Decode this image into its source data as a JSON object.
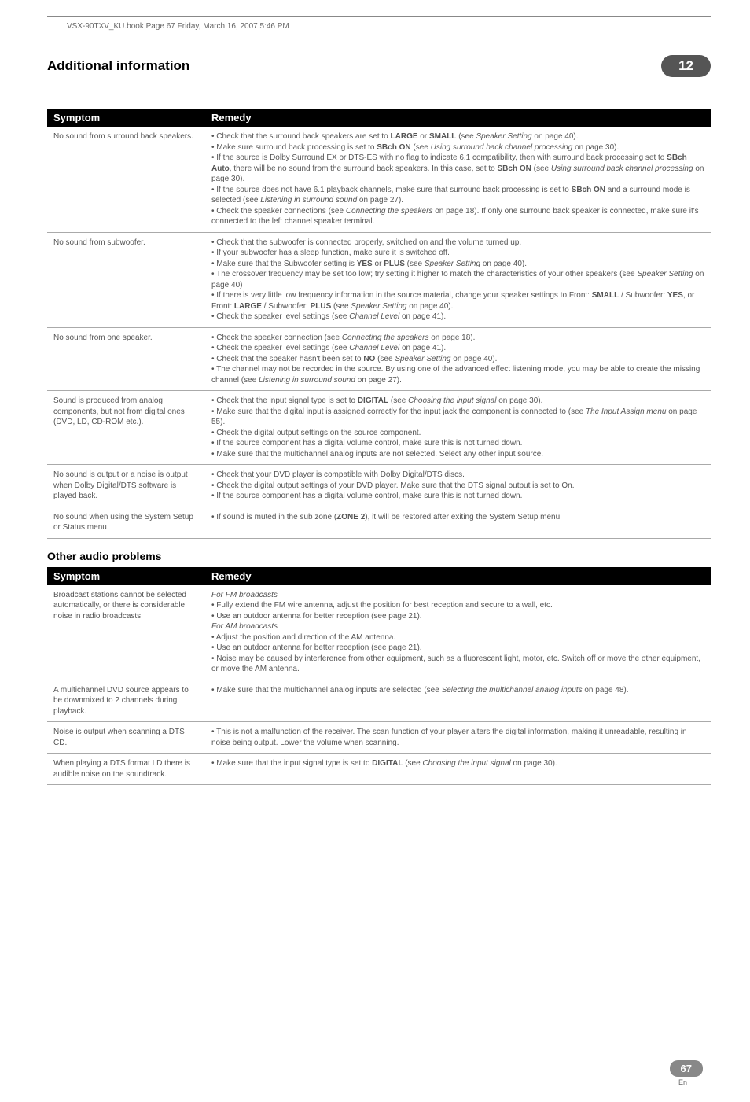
{
  "header": {
    "file_line": "VSX-90TXV_KU.book  Page 67  Friday, March 16, 2007  5:46 PM"
  },
  "title_bar": {
    "section": "Additional information",
    "chapter": "12"
  },
  "table1": {
    "head_symptom": "Symptom",
    "head_remedy": "Remedy",
    "rows": [
      {
        "symptom": "No sound from surround back speakers.",
        "remedy": "• Check that the surround back speakers are set to <b>LARGE</b> or <b>SMALL</b> (see <i>Speaker Setting</i> on page 40).<br>• Make sure surround back processing is set to <b>SBch ON</b> (see <i>Using surround back channel processing</i> on page 30).<br>• If the source is Dolby Surround EX or DTS-ES with no flag to indicate 6.1 compatibility, then with surround back processing set to <b>SBch Auto</b>, there will be no sound from the surround back speakers. In this case, set to <b>SBch ON</b> (see <i>Using surround back channel processing</i> on page 30).<br>• If the source does not have 6.1 playback channels, make sure that surround back processing is set to <b>SBch ON</b> and a surround mode is selected (see <i>Listening in surround sound</i> on page 27).<br>• Check the speaker connections (see <i>Connecting the speakers</i> on page 18). If only one surround back speaker is connected, make sure it's connected to the left channel speaker terminal."
      },
      {
        "symptom": "No sound from subwoofer.",
        "remedy": "• Check that the subwoofer is connected properly, switched on and the volume turned up.<br>• If your subwoofer has a sleep function, make sure it is switched off.<br>• Make sure that the Subwoofer setting is <b>YES</b> or <b>PLUS</b> (see <i>Speaker Setting</i> on page 40).<br>• The crossover frequency may be set too low; try setting it higher to match the characteristics of your other speakers (see <i>Speaker Setting</i> on page 40)<br>• If there is very little low frequency information in the source material, change your speaker settings to Front: <b>SMALL</b> / Subwoofer: <b>YES</b>, or Front: <b>LARGE</b> / Subwoofer: <b>PLUS</b> (see <i>Speaker Setting</i> on page 40).<br>• Check the speaker level settings (see <i>Channel Level</i> on page 41)."
      },
      {
        "symptom": "No sound from one speaker.",
        "remedy": "• Check the speaker connection (see <i>Connecting the speakers</i> on page 18).<br>• Check the speaker level settings (see <i>Channel Level</i> on page 41).<br>• Check that the speaker hasn't been set to <b>NO</b> (see <i>Speaker Setting</i> on page 40).<br>• The channel may not be recorded in the source. By using one of the advanced effect listening mode, you may be able to create the missing channel (see <i>Listening in surround sound</i> on page 27)."
      },
      {
        "symptom": "Sound is produced from analog components, but not from digital ones (DVD, LD, CD-ROM etc.).",
        "remedy": "• Check that the input signal type is set to <b>DIGITAL</b> (see <i>Choosing the input signal</i> on page 30).<br>• Make sure that the digital input is assigned correctly for the input jack the component is connected to (see <i>The Input Assign menu</i> on page 55).<br>• Check the digital output settings on the source component.<br>• If the source component has a digital volume control, make sure this is not turned down.<br>• Make sure that the multichannel analog inputs are not selected. Select any other input source."
      },
      {
        "symptom": "No sound is output or a noise is output when Dolby Digital/DTS software is played back.",
        "remedy": "• Check that your DVD player is compatible with Dolby Digital/DTS discs.<br>• Check the digital output settings of your DVD player. Make sure that the DTS signal output is set to On.<br>• If the source component has a digital volume control, make sure this is not turned down."
      },
      {
        "symptom": "No sound when using the System Setup or Status menu.",
        "remedy": "• If sound is muted in the sub zone (<b>ZONE 2</b>), it will be restored after exiting the System Setup menu."
      }
    ]
  },
  "subheading": "Other audio problems",
  "table2": {
    "head_symptom": "Symptom",
    "head_remedy": "Remedy",
    "rows": [
      {
        "symptom": "Broadcast stations cannot be selected automatically, or there is considerable noise in radio broadcasts.",
        "remedy": "<i>For FM broadcasts</i><br>• Fully extend the FM wire antenna, adjust the position for best reception and secure to a wall, etc.<br>• Use an outdoor antenna for better reception (see page 21).<br><i>For AM broadcasts</i><br>• Adjust the position and direction of the AM antenna.<br>• Use an outdoor antenna for better reception (see page 21).<br>• Noise may be caused by interference from other equipment, such as a fluorescent light, motor, etc. Switch off or move the other equipment, or move the AM antenna."
      },
      {
        "symptom": "A multichannel DVD source appears to be downmixed to 2 channels during playback.",
        "remedy": "• Make sure that the multichannel analog inputs are selected (see <i>Selecting the multichannel analog inputs</i> on page 48)."
      },
      {
        "symptom": "Noise is output when scanning a DTS CD.",
        "remedy": "• This is not a malfunction of the receiver. The scan function of your player alters the digital information, making it unreadable, resulting in noise being output. Lower the volume when scanning."
      },
      {
        "symptom": "When playing a DTS format LD there is audible noise on the soundtrack.",
        "remedy": "• Make sure that the input signal type is set to <b>DIGITAL</b> (see <i>Choosing the input signal</i> on page 30)."
      }
    ]
  },
  "footer": {
    "page": "67",
    "lang": "En"
  }
}
